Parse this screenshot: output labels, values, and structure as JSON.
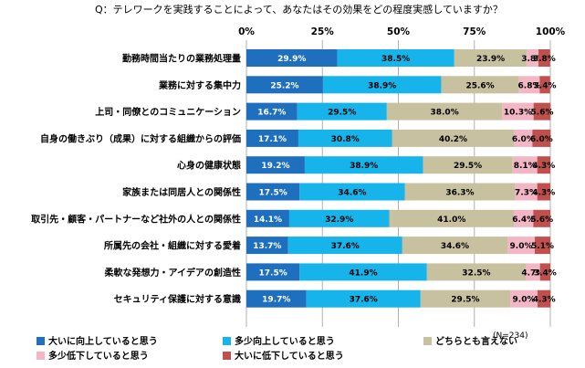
{
  "chart_data": {
    "type": "bar",
    "orientation": "horizontal",
    "stacked": true,
    "title": "Q：テレワークを実践することによって、あなたはその効果をどの程度実感していますか？",
    "note": "(N=234)",
    "xlim": [
      0,
      100
    ],
    "x_ticks": [
      "0%",
      "25%",
      "50%",
      "75%",
      "100%"
    ],
    "grid": true,
    "legend_position": "bottom",
    "categories": [
      "勤務時間当たりの業務処理量",
      "業務に対する集中力",
      "上司・同僚とのコミュニケーション",
      "自身の働きぶり（成果）に対する組織からの評価",
      "心身の健康状態",
      "家族または同居人との関係性",
      "取引先・顧客・パートナーなど社外の人との関係性",
      "所属先の会社・組織に対する愛着",
      "柔軟な発想力・アイデアの創造性",
      "セキュリティ保護に対する意識"
    ],
    "series": [
      {
        "name": "大いに向上していると思う",
        "color": "#1f6fbf",
        "text_color": "#ffffff",
        "values": [
          29.9,
          25.2,
          16.7,
          17.1,
          19.2,
          17.5,
          14.1,
          13.7,
          17.5,
          19.7
        ],
        "labels": [
          "29.9%",
          "25.2%",
          "16.7%",
          "17.1%",
          "19.2%",
          "17.5%",
          "14.1%",
          "13.7%",
          "17.5%",
          "19.7%"
        ]
      },
      {
        "name": "多少向上していると思う",
        "color": "#16b4ea",
        "text_color": "#000000",
        "values": [
          38.5,
          38.9,
          29.5,
          30.8,
          38.9,
          34.6,
          32.9,
          37.6,
          41.9,
          37.6
        ],
        "labels": [
          "38.5%",
          "38.9%",
          "29.5%",
          "30.8%",
          "38.9%",
          "34.6%",
          "32.9%",
          "37.6%",
          "41.9%",
          "37.6%"
        ]
      },
      {
        "name": "どちらとも言えない",
        "color": "#c8c1a0",
        "text_color": "#000000",
        "values": [
          23.9,
          25.6,
          38.0,
          40.2,
          29.5,
          36.3,
          41.0,
          34.6,
          32.5,
          29.5
        ],
        "labels": [
          "23.9%",
          "25.6%",
          "38.0%",
          "40.2%",
          "29.5%",
          "36.3%",
          "41.0%",
          "34.6%",
          "32.5%",
          "29.5%"
        ]
      },
      {
        "name": "多少低下していると思う",
        "color": "#f2b6c4",
        "text_color": "#000000",
        "values": [
          3.8,
          6.8,
          10.3,
          6.0,
          8.1,
          7.3,
          6.4,
          9.0,
          4.7,
          9.0
        ],
        "labels": [
          "3.8%",
          "6.8%",
          "10.3%",
          "6.0%",
          "8.1%",
          "7.3%",
          "6.4%",
          "9.0%",
          "4.7%",
          "9.0%"
        ]
      },
      {
        "name": "大いに低下していると思う",
        "color": "#c0504d",
        "text_color": "#000000",
        "values": [
          3.8,
          3.4,
          5.6,
          6.0,
          4.3,
          4.3,
          5.6,
          5.1,
          3.4,
          4.3
        ],
        "labels": [
          "3.8%",
          "3.4%",
          "5.6%",
          "6.0%",
          "4.3%",
          "4.3%",
          "5.6%",
          "5.1%",
          "3.4%",
          "4.3%"
        ]
      }
    ]
  }
}
